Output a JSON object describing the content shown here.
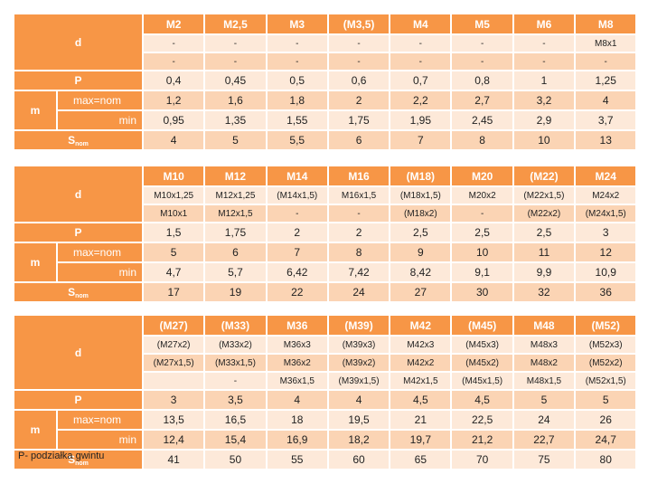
{
  "labels": {
    "d": "d",
    "p": "P",
    "m": "m",
    "max_nom": "max=nom",
    "min": "min",
    "s": "S",
    "s_sub": "nom"
  },
  "tables": [
    {
      "sizes": [
        "M2",
        "M2,5",
        "M3",
        "(M3,5)",
        "M4",
        "M5",
        "M6",
        "M8"
      ],
      "d_rows": [
        [
          "-",
          "-",
          "-",
          "-",
          "-",
          "-",
          "-",
          "M8x1"
        ],
        [
          "-",
          "-",
          "-",
          "-",
          "-",
          "-",
          "-",
          "-"
        ]
      ],
      "p": [
        "0,4",
        "0,45",
        "0,5",
        "0,6",
        "0,7",
        "0,8",
        "1",
        "1,25"
      ],
      "m_max": [
        "1,2",
        "1,6",
        "1,8",
        "2",
        "2,2",
        "2,7",
        "3,2",
        "4"
      ],
      "m_min": [
        "0,95",
        "1,35",
        "1,55",
        "1,75",
        "1,95",
        "2,45",
        "2,9",
        "3,7"
      ],
      "s_nom": [
        "4",
        "5",
        "5,5",
        "6",
        "7",
        "8",
        "10",
        "13"
      ]
    },
    {
      "sizes": [
        "M10",
        "M12",
        "M14",
        "M16",
        "(M18)",
        "M20",
        "(M22)",
        "M24"
      ],
      "d_rows": [
        [
          "M10x1,25",
          "M12x1,25",
          "(M14x1,5)",
          "M16x1,5",
          "(M18x1,5)",
          "M20x2",
          "(M22x1,5)",
          "M24x2"
        ],
        [
          "M10x1",
          "M12x1,5",
          "-",
          "-",
          "(M18x2)",
          "-",
          "(M22x2)",
          "(M24x1,5)"
        ]
      ],
      "p": [
        "1,5",
        "1,75",
        "2",
        "2",
        "2,5",
        "2,5",
        "2,5",
        "3"
      ],
      "m_max": [
        "5",
        "6",
        "7",
        "8",
        "9",
        "10",
        "11",
        "12"
      ],
      "m_min": [
        "4,7",
        "5,7",
        "6,42",
        "7,42",
        "8,42",
        "9,1",
        "9,9",
        "10,9"
      ],
      "s_nom": [
        "17",
        "19",
        "22",
        "24",
        "27",
        "30",
        "32",
        "36"
      ]
    },
    {
      "sizes": [
        "(M27)",
        "(M33)",
        "M36",
        "(M39)",
        "M42",
        "(M45)",
        "M48",
        "(M52)"
      ],
      "d_rows": [
        [
          "(M27x2)",
          "(M33x2)",
          "M36x3",
          "(M39x3)",
          "M42x3",
          "(M45x3)",
          "M48x3",
          "(M52x3)"
        ],
        [
          "(M27x1,5)",
          "(M33x1,5)",
          "M36x2",
          "(M39x2)",
          "M42x2",
          "(M45x2)",
          "M48x2",
          "(M52x2)"
        ],
        [
          "",
          "-",
          "M36x1,5",
          "(M39x1,5)",
          "M42x1,5",
          "(M45x1,5)",
          "M48x1,5",
          "(M52x1,5)"
        ]
      ],
      "p": [
        "3",
        "3,5",
        "4",
        "4",
        "4,5",
        "4,5",
        "5",
        "5"
      ],
      "m_max": [
        "13,5",
        "16,5",
        "18",
        "19,5",
        "21",
        "22,5",
        "24",
        "26"
      ],
      "m_min": [
        "12,4",
        "15,4",
        "16,9",
        "18,2",
        "19,7",
        "21,2",
        "22,7",
        "24,7"
      ],
      "s_nom": [
        "41",
        "50",
        "55",
        "60",
        "65",
        "70",
        "75",
        "80"
      ]
    }
  ],
  "footnote": "P- podziałka gwintu",
  "colors": {
    "header": "#f79646",
    "band_light": "#fde9d9",
    "band_dark": "#fbd4b4",
    "header_text": "#ffffff"
  }
}
